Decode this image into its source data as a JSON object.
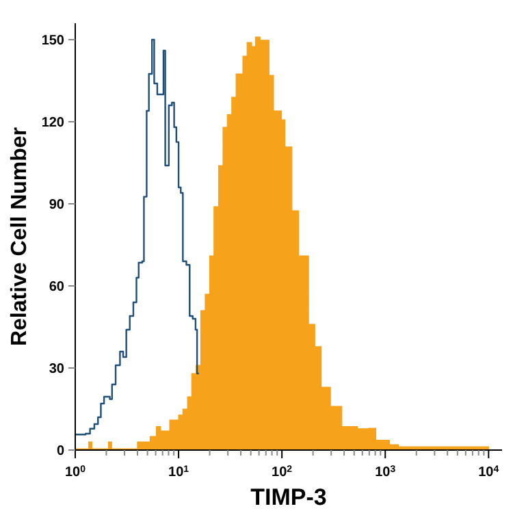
{
  "chart_data": {
    "type": "step",
    "xlabel": "TIMP-3",
    "ylabel": "Relative Cell Number",
    "log": "x",
    "xlim": [
      1,
      13500
    ],
    "ylim": [
      0,
      156
    ],
    "yticks": [
      0,
      30,
      60,
      90,
      120,
      150
    ],
    "xticks": [
      {
        "value": 1,
        "label": "10$^{0}$"
      },
      {
        "value": 2,
        "label": null
      },
      {
        "value": 3,
        "label": null
      },
      {
        "value": 4,
        "label": null
      },
      {
        "value": 5,
        "label": null
      },
      {
        "value": 6,
        "label": null
      },
      {
        "value": 7,
        "label": null
      },
      {
        "value": 8,
        "label": null
      },
      {
        "value": 9,
        "label": null
      },
      {
        "value": 10,
        "label": "10$^{1}$"
      },
      {
        "value": 20,
        "label": null
      },
      {
        "value": 30,
        "label": null
      },
      {
        "value": 40,
        "label": null
      },
      {
        "value": 50,
        "label": null
      },
      {
        "value": 60,
        "label": null
      },
      {
        "value": 70,
        "label": null
      },
      {
        "value": 80,
        "label": null
      },
      {
        "value": 90,
        "label": null
      },
      {
        "value": 100,
        "label": "10$^{2}$"
      },
      {
        "value": 200,
        "label": null
      },
      {
        "value": 300,
        "label": null
      },
      {
        "value": 400,
        "label": null
      },
      {
        "value": 500,
        "label": null
      },
      {
        "value": 600,
        "label": null
      },
      {
        "value": 700,
        "label": null
      },
      {
        "value": 800,
        "label": null
      },
      {
        "value": 900,
        "label": null
      },
      {
        "value": 1000,
        "label": "10$^{3}$"
      },
      {
        "value": 2000,
        "label": null
      },
      {
        "value": 3000,
        "label": null
      },
      {
        "value": 4000,
        "label": null
      },
      {
        "value": 5000,
        "label": null
      },
      {
        "value": 6000,
        "label": null
      },
      {
        "value": 7000,
        "label": null
      },
      {
        "value": 8000,
        "label": null
      },
      {
        "value": 9000,
        "label": null
      },
      {
        "value": 10000,
        "label": "10$^{4}$"
      }
    ],
    "grid": false,
    "series": [
      {
        "type": "area",
        "color": "#f7a21b",
        "x": [
          1,
          1.35,
          1.45,
          2.1,
          2.25,
          4.0,
          5.3,
          6.1,
          6.7,
          8.2,
          10,
          11,
          12.2,
          13.4,
          14.8,
          16.4,
          18.1,
          20,
          22,
          24.4,
          26.9,
          29.6,
          32.7,
          36,
          41.9,
          46,
          51,
          55.4,
          61.5,
          75,
          83,
          99,
          107,
          125,
          145,
          168,
          181,
          208,
          240,
          295,
          380,
          540,
          690,
          810,
          1100,
          1340,
          9500,
          10000
        ],
        "values": [
          0.5,
          3,
          0.5,
          3,
          0.5,
          3,
          5,
          8.6,
          7,
          11,
          12.8,
          15,
          19.5,
          28,
          31,
          51,
          57,
          71,
          89,
          104,
          118,
          122.6,
          129,
          137.5,
          144,
          149,
          147.5,
          151,
          149.8,
          137,
          124,
          120.7,
          110.8,
          87.5,
          71,
          71,
          46,
          37.8,
          23,
          16,
          8.6,
          7.8,
          8,
          3.6,
          2,
          1.2,
          1.2,
          0
        ]
      },
      {
        "type": "step",
        "color": "#1f4e79",
        "x": [
          1,
          1.26,
          1.39,
          1.53,
          1.66,
          1.77,
          1.9,
          2.16,
          2.27,
          2.46,
          2.71,
          2.91,
          3.12,
          3.37,
          3.65,
          3.91,
          4.11,
          4.45,
          4.62,
          4.91,
          5.16,
          5.53,
          5.81,
          6.22,
          6.87,
          7.14,
          7.43,
          8.05,
          8.62,
          9.06,
          9.52,
          10,
          10.5,
          11,
          11.9,
          12.8,
          13.7,
          14.6,
          15.1,
          15.7
        ],
        "values": [
          5.7,
          6,
          7.8,
          9.5,
          12,
          17,
          19.5,
          18.6,
          24,
          31,
          36,
          34,
          44,
          49,
          54,
          63,
          68.5,
          69,
          92.6,
          124,
          137.5,
          150,
          134,
          130,
          130,
          146,
          104,
          126,
          127,
          118,
          112.6,
          96,
          94,
          69,
          67.7,
          49,
          48,
          44,
          28,
          28
        ]
      }
    ]
  }
}
